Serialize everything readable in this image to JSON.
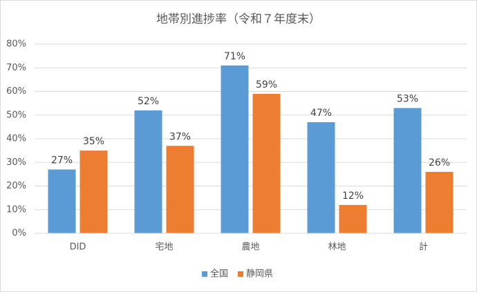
{
  "chart_data": {
    "type": "bar",
    "title": "地帯別進捗率（令和７年度末）",
    "categories": [
      "DID",
      "宅地",
      "農地",
      "林地",
      "計"
    ],
    "series": [
      {
        "name": "全国",
        "color": "#5b9bd5",
        "values": [
          27,
          52,
          71,
          47,
          53
        ],
        "value_labels": [
          "27%",
          "52%",
          "71%",
          "47%",
          "53%"
        ]
      },
      {
        "name": "静岡県",
        "color": "#ed7d31",
        "values": [
          35,
          37,
          59,
          12,
          26
        ],
        "value_labels": [
          "35%",
          "37%",
          "59%",
          "12%",
          "26%"
        ]
      }
    ],
    "ylim": [
      0,
      80
    ],
    "yticks": [
      {
        "value": 0,
        "label": "0%"
      },
      {
        "value": 10,
        "label": "10%"
      },
      {
        "value": 20,
        "label": "20%"
      },
      {
        "value": 30,
        "label": "30%"
      },
      {
        "value": 40,
        "label": "40%"
      },
      {
        "value": 50,
        "label": "50%"
      },
      {
        "value": 60,
        "label": "60%"
      },
      {
        "value": 70,
        "label": "70%"
      },
      {
        "value": 80,
        "label": "80%"
      }
    ],
    "grid": true,
    "legend": "bottom"
  }
}
